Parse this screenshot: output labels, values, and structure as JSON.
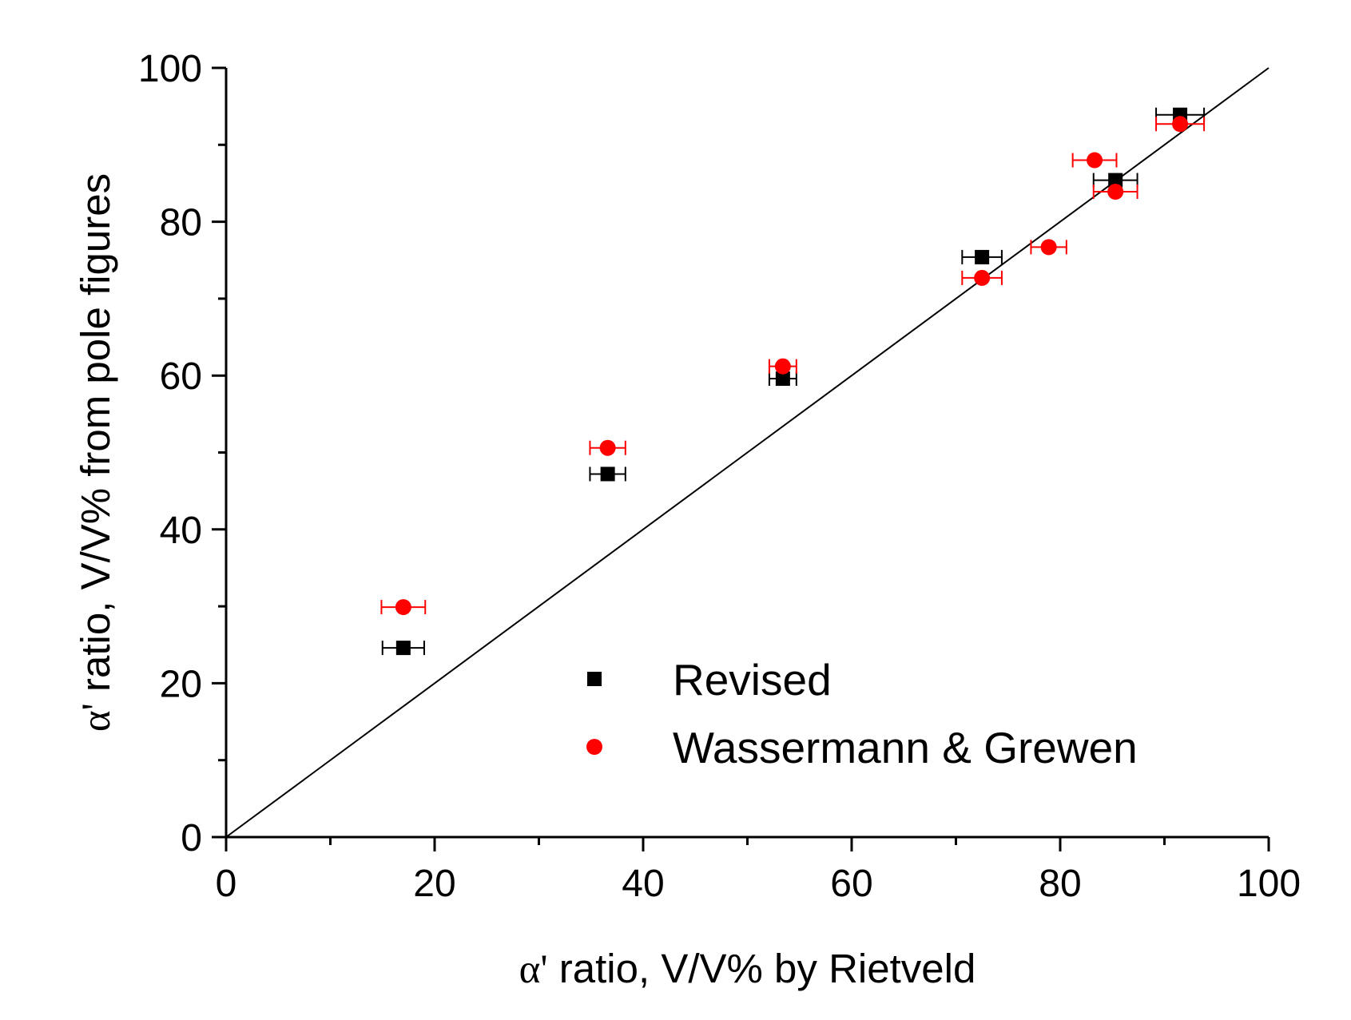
{
  "chart_data": {
    "type": "scatter",
    "title": "",
    "xlabel": {
      "symbol": "α'",
      "text": " ratio, V/V% by Rietveld"
    },
    "ylabel": {
      "symbol": "α'",
      "text": " ratio, V/V% from pole figures"
    },
    "xlim": [
      0,
      100
    ],
    "ylim": [
      0,
      100
    ],
    "x_ticks": [
      "0",
      "20",
      "40",
      "60",
      "80",
      "100"
    ],
    "y_ticks": [
      "0",
      "20",
      "40",
      "60",
      "80",
      "100"
    ],
    "grid": false,
    "legend_position": "bottom-right",
    "reference_line": {
      "name": "y = x",
      "x": [
        0,
        100
      ],
      "y": [
        0,
        100
      ],
      "color": "#000000"
    },
    "series": [
      {
        "name": "Revised",
        "marker": "square",
        "color": "#000000",
        "points": [
          {
            "x": 17.0,
            "y": 24.6,
            "xerr": 2.0
          },
          {
            "x": 36.6,
            "y": 47.2,
            "xerr": 1.7
          },
          {
            "x": 53.4,
            "y": 59.6,
            "xerr": 1.3
          },
          {
            "x": 72.5,
            "y": 75.4,
            "xerr": 1.9
          },
          {
            "x": 85.3,
            "y": 85.4,
            "xerr": 2.1
          },
          {
            "x": 91.5,
            "y": 93.9,
            "xerr": 2.3
          }
        ]
      },
      {
        "name": "Wassermann & Grewen",
        "marker": "circle",
        "color": "#ff0000",
        "points": [
          {
            "x": 17.0,
            "y": 29.9,
            "xerr": 2.1
          },
          {
            "x": 36.6,
            "y": 50.6,
            "xerr": 1.7
          },
          {
            "x": 53.4,
            "y": 61.2,
            "xerr": 1.3
          },
          {
            "x": 72.5,
            "y": 72.7,
            "xerr": 1.9
          },
          {
            "x": 78.9,
            "y": 76.7,
            "xerr": 1.7
          },
          {
            "x": 83.3,
            "y": 88.0,
            "xerr": 2.1
          },
          {
            "x": 85.3,
            "y": 83.9,
            "xerr": 2.1
          },
          {
            "x": 91.5,
            "y": 92.7,
            "xerr": 2.3
          }
        ]
      }
    ]
  }
}
